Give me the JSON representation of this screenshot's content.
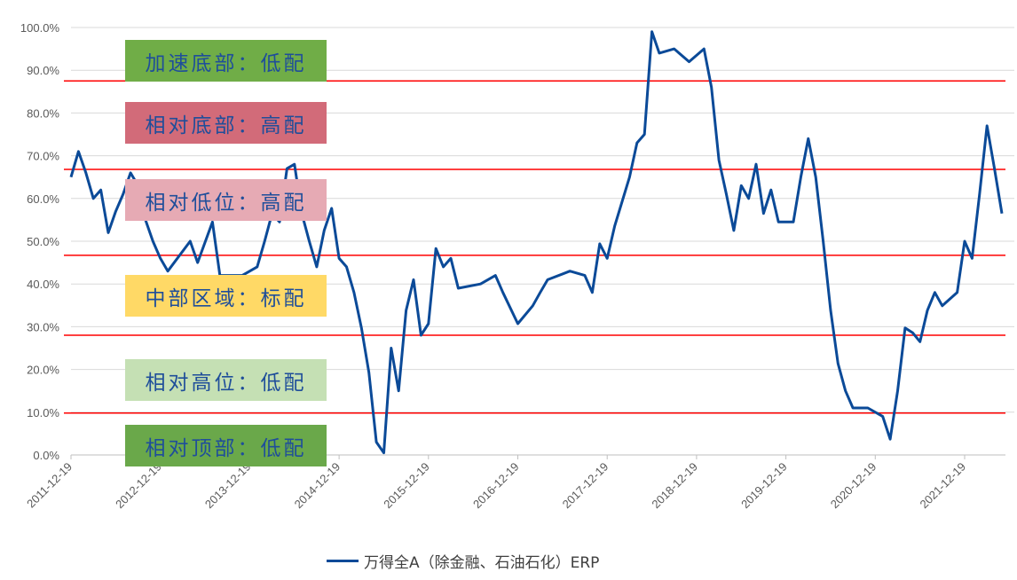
{
  "chart_data": {
    "type": "line",
    "title": "",
    "xlabel": "",
    "ylabel": "",
    "ylim": [
      0,
      100
    ],
    "y_ticks": [
      "0.0%",
      "10.0%",
      "20.0%",
      "30.0%",
      "40.0%",
      "50.0%",
      "60.0%",
      "70.0%",
      "80.0%",
      "90.0%",
      "100.0%"
    ],
    "x_ticks": [
      "2011-12-19",
      "2012-12-19",
      "2013-12-19",
      "2014-12-19",
      "2015-12-19",
      "2016-12-19",
      "2017-12-19",
      "2018-12-19",
      "2019-12-19",
      "2020-12-19",
      "2021-12-19"
    ],
    "grid": "horizontal",
    "legend_position": "bottom",
    "series": [
      {
        "name": "万得全A（除金融、石油石化）ERP",
        "color": "#0b4a98",
        "points": [
          [
            "2011-12",
            65
          ],
          [
            "2012-01",
            71
          ],
          [
            "2012-02",
            66
          ],
          [
            "2012-03",
            60
          ],
          [
            "2012-04",
            62
          ],
          [
            "2012-05",
            52
          ],
          [
            "2012-06",
            57
          ],
          [
            "2012-07",
            61
          ],
          [
            "2012-08",
            66
          ],
          [
            "2012-09",
            63
          ],
          [
            "2012-10",
            55
          ],
          [
            "2012-11",
            50
          ],
          [
            "2012-12",
            46
          ],
          [
            "2013-01",
            43
          ],
          [
            "2013-04",
            50
          ],
          [
            "2013-05",
            45
          ],
          [
            "2013-07",
            54.5
          ],
          [
            "2013-08",
            42
          ],
          [
            "2013-11",
            42
          ],
          [
            "2014-01",
            44
          ],
          [
            "2014-02",
            50
          ],
          [
            "2014-03",
            56.5
          ],
          [
            "2014-04",
            54.5
          ],
          [
            "2014-05",
            67
          ],
          [
            "2014-06",
            68
          ],
          [
            "2014-07",
            56.5
          ],
          [
            "2014-08",
            50
          ],
          [
            "2014-09",
            44
          ],
          [
            "2014-10",
            52.5
          ],
          [
            "2014-11",
            57.7
          ],
          [
            "2014-12",
            46
          ],
          [
            "2015-01",
            44
          ],
          [
            "2015-02",
            38
          ],
          [
            "2015-03",
            29.7
          ],
          [
            "2015-04",
            19.3
          ],
          [
            "2015-05",
            3
          ],
          [
            "2015-06",
            0.5
          ],
          [
            "2015-07",
            25
          ],
          [
            "2015-08",
            15
          ],
          [
            "2015-09",
            33.8
          ],
          [
            "2015-10",
            41
          ],
          [
            "2015-11",
            28
          ],
          [
            "2015-12",
            30.7
          ],
          [
            "2016-01",
            48.3
          ],
          [
            "2016-02",
            44
          ],
          [
            "2016-03",
            46
          ],
          [
            "2016-04",
            39
          ],
          [
            "2016-07",
            40
          ],
          [
            "2016-09",
            42
          ],
          [
            "2016-10",
            38
          ],
          [
            "2016-12",
            30.7
          ],
          [
            "2017-02",
            34.9
          ],
          [
            "2017-03",
            38
          ],
          [
            "2017-04",
            41
          ],
          [
            "2017-07",
            43
          ],
          [
            "2017-09",
            42
          ],
          [
            "2017-10",
            38
          ],
          [
            "2017-11",
            49.4
          ],
          [
            "2017-12",
            46
          ],
          [
            "2018-01",
            53.5
          ],
          [
            "2018-03",
            65
          ],
          [
            "2018-04",
            73
          ],
          [
            "2018-05",
            75
          ],
          [
            "2018-06",
            99
          ],
          [
            "2018-07",
            94
          ],
          [
            "2018-09",
            95
          ],
          [
            "2018-11",
            92
          ],
          [
            "2019-01",
            95
          ],
          [
            "2019-02",
            86
          ],
          [
            "2019-03",
            69
          ],
          [
            "2019-04",
            61
          ],
          [
            "2019-05",
            52.5
          ],
          [
            "2019-06",
            63
          ],
          [
            "2019-07",
            60
          ],
          [
            "2019-08",
            68
          ],
          [
            "2019-09",
            56.5
          ],
          [
            "2019-10",
            62
          ],
          [
            "2019-11",
            54.5
          ],
          [
            "2020-01",
            54.5
          ],
          [
            "2020-02",
            65
          ],
          [
            "2020-03",
            74
          ],
          [
            "2020-04",
            65
          ],
          [
            "2020-05",
            50
          ],
          [
            "2020-06",
            33.8
          ],
          [
            "2020-07",
            21.4
          ],
          [
            "2020-08",
            15
          ],
          [
            "2020-09",
            11
          ],
          [
            "2020-11",
            11
          ],
          [
            "2021-01",
            9
          ],
          [
            "2021-02",
            3.7
          ],
          [
            "2021-03",
            15
          ],
          [
            "2021-04",
            29.7
          ],
          [
            "2021-05",
            28.6
          ],
          [
            "2021-06",
            26.5
          ],
          [
            "2021-07",
            33.8
          ],
          [
            "2021-08",
            38
          ],
          [
            "2021-09",
            34.9
          ],
          [
            "2021-11",
            38
          ],
          [
            "2021-12",
            50
          ],
          [
            "2022-01",
            46
          ],
          [
            "2022-02",
            61
          ],
          [
            "2022-03",
            77
          ],
          [
            "2022-04",
            67
          ],
          [
            "2022-05",
            56.5
          ]
        ]
      }
    ],
    "threshold_lines": {
      "color": "#ff0000",
      "values": [
        87.5,
        66.8,
        46.7,
        28,
        9.8
      ]
    },
    "band_labels": [
      {
        "text": "加速底部：低配",
        "color": "#70ad47"
      },
      {
        "text": "相对底部：高配",
        "color": "#d26b79"
      },
      {
        "text": "相对低位：高配",
        "color": "#e6aab4"
      },
      {
        "text": "中部区域：标配",
        "color": "#ffd966"
      },
      {
        "text": "相对高位：低配",
        "color": "#c5e0b4"
      },
      {
        "text": "相对顶部：低配",
        "color": "#6aa84a"
      }
    ]
  }
}
